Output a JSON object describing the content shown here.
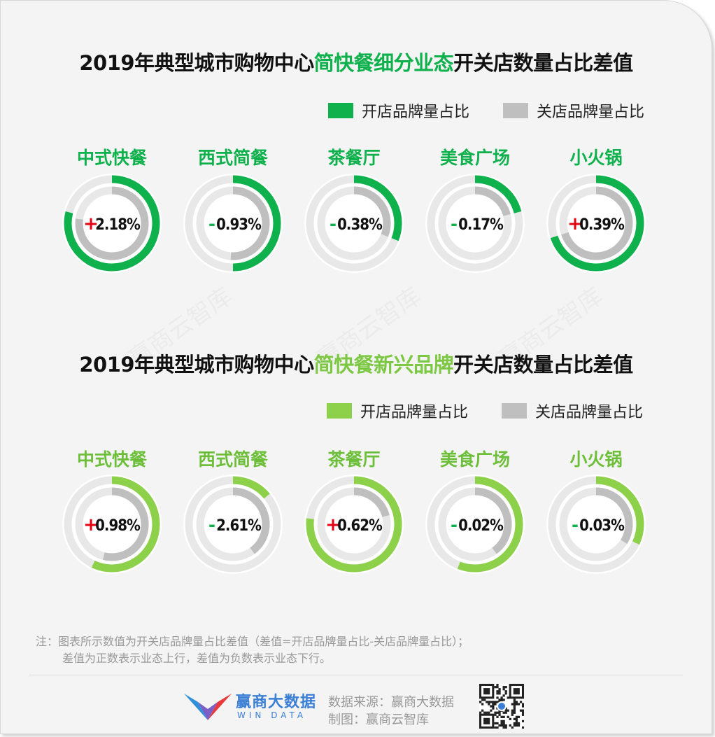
{
  "colors": {
    "dark_green": "#0fb14c",
    "light_green": "#8dd04a",
    "gray": "#bfbfbf",
    "plus_red": "#e60012",
    "minus_green": "#0fb14c",
    "track": "#e8e8e8"
  },
  "sections": [
    {
      "title_prefix": "2019年典型城市购物中心",
      "title_highlight": "简快餐细分业态",
      "title_suffix": "开关店数量占比差值",
      "legend_open": "开店品牌量占比",
      "legend_close": "关店品牌量占比"
    },
    {
      "title_prefix": "2019年典型城市购物中心",
      "title_highlight": "简快餐新兴品牌",
      "title_suffix": "开关店数量占比差值",
      "legend_open": "开店品牌量占比",
      "legend_close": "关店品牌量占比"
    }
  ],
  "chart_data": [
    {
      "type": "donut",
      "categories": [
        "中式快餐",
        "西式简餐",
        "茶餐厅",
        "美食广场",
        "小火锅"
      ],
      "series": [
        {
          "name": "开店品牌量占比",
          "color": "#0fb14c",
          "values": [
            0.79,
            0.5,
            0.31,
            0.21,
            0.7
          ]
        },
        {
          "name": "关店品牌量占比",
          "color": "#bfbfbf",
          "values": [
            0.77,
            0.51,
            0.31,
            0.21,
            0.7
          ]
        }
      ],
      "labels": [
        "2.18%",
        "0.93%",
        "0.38%",
        "0.17%",
        "0.39%"
      ],
      "signs": [
        "+",
        "-",
        "-",
        "-",
        "+"
      ]
    },
    {
      "type": "donut",
      "categories": [
        "中式快餐",
        "西式简餐",
        "茶餐厅",
        "美食广场",
        "小火锅"
      ],
      "series": [
        {
          "name": "开店品牌量占比",
          "color": "#8dd04a",
          "values": [
            0.57,
            0.14,
            0.77,
            0.56,
            0.32
          ]
        },
        {
          "name": "关店品牌量占比",
          "color": "#bfbfbf",
          "values": [
            0.54,
            0.4,
            0.21,
            0.4,
            0.34
          ]
        }
      ],
      "labels": [
        "0.98%",
        "2.61%",
        "0.62%",
        "0.02%",
        "0.03%"
      ],
      "signs": [
        "+",
        "-",
        "+",
        "-",
        "-"
      ]
    }
  ],
  "note_line1": "注：图表所示数值为开关店品牌量占比差值（差值=开店品牌量占比-关店品牌量占比）；",
  "note_line2": "差值为正数表示业态上行，差值为负数表示业态下行。",
  "brand_cn": "赢商大数据",
  "brand_en": "WIN DATA",
  "source_text": "数据来源：赢商大数据",
  "made_text": "制图：赢商云智库",
  "watermark_text": "赢商云智库"
}
